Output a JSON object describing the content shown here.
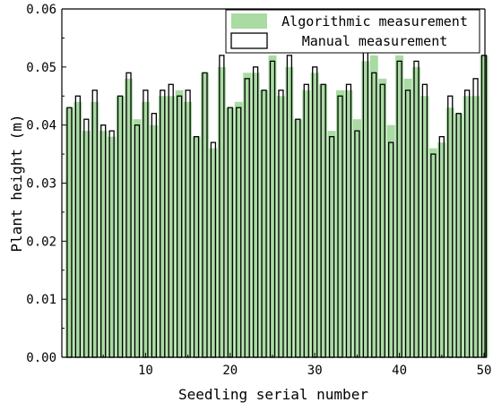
{
  "chart_data": {
    "type": "bar",
    "xlabel": "Seedling serial number",
    "ylabel": "Plant height (m)",
    "xlim": [
      0,
      50
    ],
    "ylim": [
      0,
      0.06
    ],
    "x_ticks": [
      10,
      20,
      30,
      40,
      50
    ],
    "y_ticks": [
      "0.00",
      "0.01",
      "0.02",
      "0.03",
      "0.04",
      "0.05",
      "0.06"
    ],
    "legend_position": "top-right",
    "grid": false,
    "colors": {
      "algorithmic": "#a9dba3",
      "manual_edge": "#000000",
      "axis": "#000000"
    },
    "series": [
      {
        "name": "Algorithmic measurement",
        "style": "filled",
        "values": [
          0.043,
          0.044,
          0.039,
          0.044,
          0.039,
          0.038,
          0.045,
          0.048,
          0.041,
          0.044,
          0.04,
          0.045,
          0.045,
          0.046,
          0.044,
          0.038,
          0.049,
          0.036,
          0.05,
          0.043,
          0.044,
          0.049,
          0.049,
          0.046,
          0.052,
          0.045,
          0.05,
          0.041,
          0.046,
          0.049,
          0.047,
          0.039,
          0.046,
          0.046,
          0.041,
          0.051,
          0.052,
          0.048,
          0.04,
          0.052,
          0.048,
          0.05,
          0.045,
          0.036,
          0.037,
          0.043,
          0.042,
          0.045,
          0.045,
          0.052
        ]
      },
      {
        "name": "Manual measurement",
        "style": "outline",
        "values": [
          0.043,
          0.045,
          0.041,
          0.046,
          0.04,
          0.039,
          0.045,
          0.049,
          0.04,
          0.046,
          0.042,
          0.046,
          0.047,
          0.045,
          0.046,
          0.038,
          0.049,
          0.037,
          0.052,
          0.043,
          0.043,
          0.048,
          0.05,
          0.046,
          0.051,
          0.046,
          0.052,
          0.041,
          0.047,
          0.05,
          0.047,
          0.038,
          0.045,
          0.047,
          0.039,
          0.053,
          0.049,
          0.047,
          0.037,
          0.051,
          0.046,
          0.051,
          0.047,
          0.035,
          0.038,
          0.045,
          0.042,
          0.046,
          0.048,
          0.052
        ]
      }
    ]
  }
}
